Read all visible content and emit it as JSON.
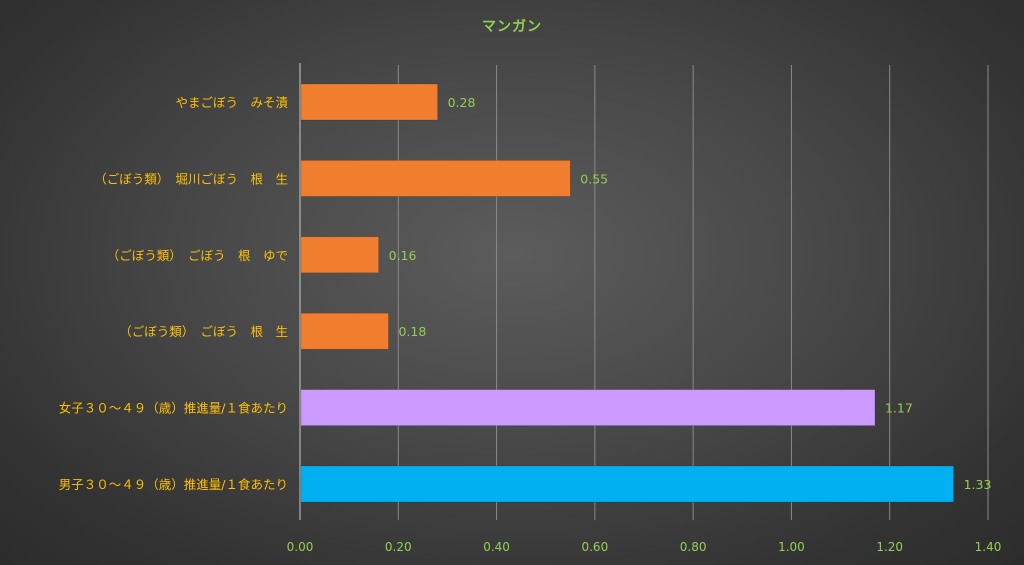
{
  "colors": {
    "title": "#92d050",
    "category_label": "#ffc000",
    "tick_label": "#92d050",
    "data_label": "#92d050",
    "grid": "#8a8a8a",
    "axis": "#c8c8c8",
    "food_bar": "#f07e2e",
    "female_bar": "#cc99ff",
    "male_bar": "#00b0f0"
  },
  "chart_data": {
    "type": "bar",
    "orientation": "horizontal",
    "title": "マンガン",
    "xlabel": "",
    "ylabel": "",
    "xlim": [
      0,
      1.4
    ],
    "tick_values": [
      0,
      0.2,
      0.4,
      0.6,
      0.8,
      1.0,
      1.2,
      1.4
    ],
    "tick_labels": [
      "0.00",
      "0.20",
      "0.40",
      "0.60",
      "0.80",
      "1.00",
      "1.20",
      "1.40"
    ],
    "grid": true,
    "legend": false,
    "categories": [
      "やまごぼう　みそ漬",
      "（ごぼう類）　堀川ごぼう　根　生",
      "（ごぼう類）　ごぼう　根　ゆで",
      "（ごぼう類）　ごぼう　根　生",
      "女子３０～４９（歳）推進量/１食あたり",
      "男子３０～４９（歳）推進量/１食あたり"
    ],
    "values": [
      0.28,
      0.55,
      0.16,
      0.18,
      1.17,
      1.33
    ],
    "value_labels": [
      "0.28",
      "0.55",
      "0.16",
      "0.18",
      "1.17",
      "1.33"
    ],
    "bar_colors": [
      "#f07e2e",
      "#f07e2e",
      "#f07e2e",
      "#f07e2e",
      "#cc99ff",
      "#00b0f0"
    ]
  }
}
